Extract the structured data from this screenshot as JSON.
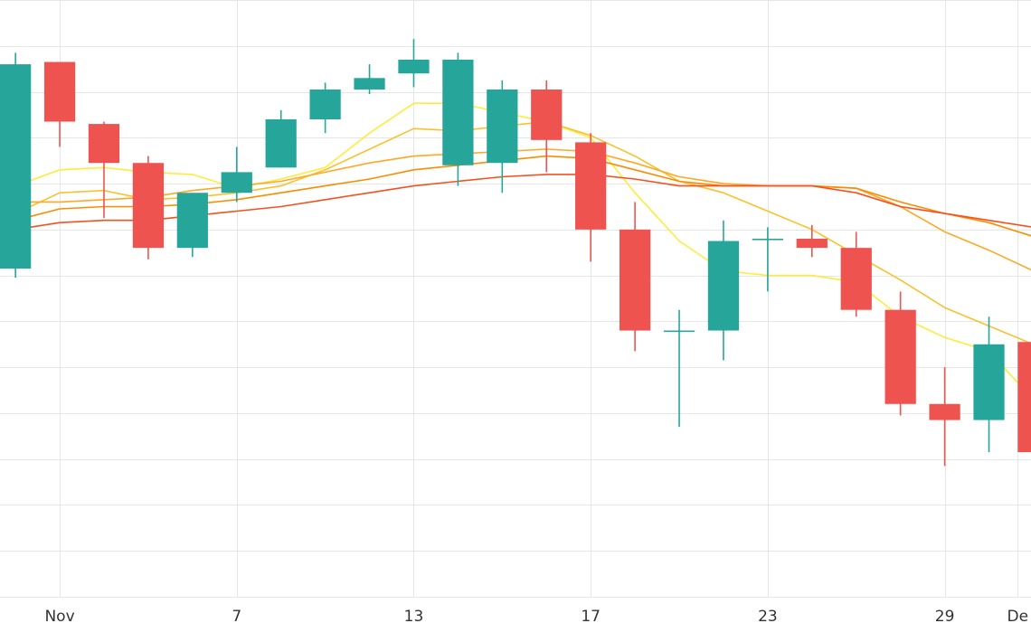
{
  "chart_data": {
    "type": "candlestick",
    "grid": true,
    "legend": "none",
    "ylim": [
      0,
      13
    ],
    "xlim": [
      -1.35,
      21.95
    ],
    "x_tick_labels": [
      {
        "label": "Nov",
        "x": 0
      },
      {
        "label": "7",
        "x": 4
      },
      {
        "label": "13",
        "x": 8
      },
      {
        "label": "17",
        "x": 12
      },
      {
        "label": "23",
        "x": 16
      },
      {
        "label": "29",
        "x": 20
      },
      {
        "label": "De",
        "x": 21.65
      }
    ],
    "colors": {
      "up": "#26a69a",
      "down": "#ef5350",
      "grid": "#e6e6e6",
      "ma_lines": [
        "#ffeb3b",
        "#fbc02d",
        "#ffa726",
        "#fb8c00",
        "#f4511e"
      ]
    },
    "candles": [
      {
        "x": -1,
        "open": 7.15,
        "high": 11.85,
        "low": 6.95,
        "close": 11.6
      },
      {
        "x": 0,
        "open": 11.65,
        "high": 11.65,
        "low": 9.8,
        "close": 10.35
      },
      {
        "x": 1,
        "open": 10.3,
        "high": 10.35,
        "low": 8.25,
        "close": 9.45
      },
      {
        "x": 2,
        "open": 9.45,
        "high": 9.6,
        "low": 7.35,
        "close": 7.6
      },
      {
        "x": 3,
        "open": 7.6,
        "high": 8.8,
        "low": 7.4,
        "close": 8.8
      },
      {
        "x": 4,
        "open": 8.8,
        "high": 9.8,
        "low": 8.6,
        "close": 9.25
      },
      {
        "x": 5,
        "open": 9.35,
        "high": 10.6,
        "low": 9.35,
        "close": 10.4
      },
      {
        "x": 6,
        "open": 10.4,
        "high": 11.2,
        "low": 10.1,
        "close": 11.05
      },
      {
        "x": 7,
        "open": 11.05,
        "high": 11.6,
        "low": 10.95,
        "close": 11.3
      },
      {
        "x": 8,
        "open": 11.4,
        "high": 12.15,
        "low": 11.1,
        "close": 11.7
      },
      {
        "x": 9,
        "open": 9.4,
        "high": 11.85,
        "low": 8.95,
        "close": 11.7
      },
      {
        "x": 10,
        "open": 9.45,
        "high": 11.25,
        "low": 8.8,
        "close": 11.05
      },
      {
        "x": 11,
        "open": 11.05,
        "high": 11.25,
        "low": 9.25,
        "close": 9.95
      },
      {
        "x": 12,
        "open": 9.9,
        "high": 10.1,
        "low": 7.3,
        "close": 8.0
      },
      {
        "x": 13,
        "open": 8.0,
        "high": 8.6,
        "low": 5.35,
        "close": 5.8
      },
      {
        "x": 14,
        "open": 5.8,
        "high": 6.25,
        "low": 3.7,
        "close": 5.8
      },
      {
        "x": 15,
        "open": 5.8,
        "high": 8.2,
        "low": 5.15,
        "close": 7.75
      },
      {
        "x": 16,
        "open": 7.8,
        "high": 8.05,
        "low": 6.65,
        "close": 7.8
      },
      {
        "x": 17,
        "open": 7.8,
        "high": 8.1,
        "low": 7.4,
        "close": 7.6
      },
      {
        "x": 18,
        "open": 7.6,
        "high": 7.95,
        "low": 6.1,
        "close": 6.25
      },
      {
        "x": 19,
        "open": 6.25,
        "high": 6.65,
        "low": 3.95,
        "close": 4.2
      },
      {
        "x": 20,
        "open": 4.2,
        "high": 5.0,
        "low": 2.85,
        "close": 3.85
      },
      {
        "x": 21,
        "open": 3.85,
        "high": 6.1,
        "low": 3.15,
        "close": 5.5
      },
      {
        "x": 22,
        "open": 5.55,
        "high": 5.8,
        "low": 2.95,
        "close": 3.15
      }
    ],
    "ma_lines": [
      {
        "points": [
          [
            -1,
            8.95
          ],
          [
            0,
            9.3
          ],
          [
            1,
            9.35
          ],
          [
            2,
            9.25
          ],
          [
            3,
            9.2
          ],
          [
            4,
            8.9
          ],
          [
            5,
            9.1
          ],
          [
            6,
            9.35
          ],
          [
            7,
            10.1
          ],
          [
            8,
            10.75
          ],
          [
            9,
            10.75
          ],
          [
            10,
            10.55
          ],
          [
            11,
            10.35
          ],
          [
            12,
            10.0
          ],
          [
            13,
            8.8
          ],
          [
            14,
            7.75
          ],
          [
            15,
            7.1
          ],
          [
            16,
            7.0
          ],
          [
            17,
            7.0
          ],
          [
            18,
            6.85
          ],
          [
            19,
            6.1
          ],
          [
            20,
            5.65
          ],
          [
            21,
            5.35
          ],
          [
            22,
            4.3
          ]
        ]
      },
      {
        "points": [
          [
            -1,
            8.35
          ],
          [
            0,
            8.8
          ],
          [
            1,
            8.85
          ],
          [
            2,
            8.65
          ],
          [
            3,
            8.7
          ],
          [
            4,
            8.8
          ],
          [
            5,
            8.95
          ],
          [
            6,
            9.3
          ],
          [
            7,
            9.75
          ],
          [
            8,
            10.2
          ],
          [
            9,
            10.15
          ],
          [
            10,
            10.25
          ],
          [
            11,
            10.35
          ],
          [
            12,
            10.05
          ],
          [
            13,
            9.6
          ],
          [
            14,
            9.05
          ],
          [
            15,
            8.8
          ],
          [
            16,
            8.4
          ],
          [
            17,
            8.0
          ],
          [
            18,
            7.45
          ],
          [
            19,
            6.9
          ],
          [
            20,
            6.3
          ],
          [
            21,
            5.9
          ],
          [
            22,
            5.5
          ]
        ]
      },
      {
        "points": [
          [
            -1,
            8.6
          ],
          [
            0,
            8.6
          ],
          [
            1,
            8.65
          ],
          [
            2,
            8.7
          ],
          [
            3,
            8.85
          ],
          [
            4,
            8.95
          ],
          [
            5,
            9.05
          ],
          [
            6,
            9.25
          ],
          [
            7,
            9.45
          ],
          [
            8,
            9.6
          ],
          [
            9,
            9.65
          ],
          [
            10,
            9.7
          ],
          [
            11,
            9.75
          ],
          [
            12,
            9.7
          ],
          [
            13,
            9.45
          ],
          [
            14,
            9.15
          ],
          [
            15,
            9.0
          ],
          [
            16,
            8.95
          ],
          [
            17,
            8.95
          ],
          [
            18,
            8.9
          ],
          [
            19,
            8.5
          ],
          [
            20,
            7.95
          ],
          [
            21,
            7.55
          ],
          [
            22,
            7.1
          ]
        ]
      },
      {
        "points": [
          [
            -1,
            8.2
          ],
          [
            0,
            8.45
          ],
          [
            1,
            8.5
          ],
          [
            2,
            8.5
          ],
          [
            3,
            8.55
          ],
          [
            4,
            8.65
          ],
          [
            5,
            8.8
          ],
          [
            6,
            8.95
          ],
          [
            7,
            9.1
          ],
          [
            8,
            9.3
          ],
          [
            9,
            9.4
          ],
          [
            10,
            9.5
          ],
          [
            11,
            9.6
          ],
          [
            12,
            9.55
          ],
          [
            13,
            9.3
          ],
          [
            14,
            9.05
          ],
          [
            15,
            8.95
          ],
          [
            16,
            8.95
          ],
          [
            17,
            8.95
          ],
          [
            18,
            8.9
          ],
          [
            19,
            8.6
          ],
          [
            20,
            8.35
          ],
          [
            21,
            8.15
          ],
          [
            22,
            7.85
          ]
        ]
      },
      {
        "points": [
          [
            -1,
            8.0
          ],
          [
            0,
            8.15
          ],
          [
            1,
            8.2
          ],
          [
            2,
            8.2
          ],
          [
            3,
            8.3
          ],
          [
            4,
            8.4
          ],
          [
            5,
            8.5
          ],
          [
            6,
            8.65
          ],
          [
            7,
            8.8
          ],
          [
            8,
            8.95
          ],
          [
            9,
            9.05
          ],
          [
            10,
            9.15
          ],
          [
            11,
            9.2
          ],
          [
            12,
            9.2
          ],
          [
            13,
            9.1
          ],
          [
            14,
            8.95
          ],
          [
            15,
            8.95
          ],
          [
            16,
            8.95
          ],
          [
            17,
            8.95
          ],
          [
            18,
            8.8
          ],
          [
            19,
            8.5
          ],
          [
            20,
            8.35
          ],
          [
            21,
            8.2
          ],
          [
            22,
            8.05
          ]
        ]
      }
    ]
  }
}
